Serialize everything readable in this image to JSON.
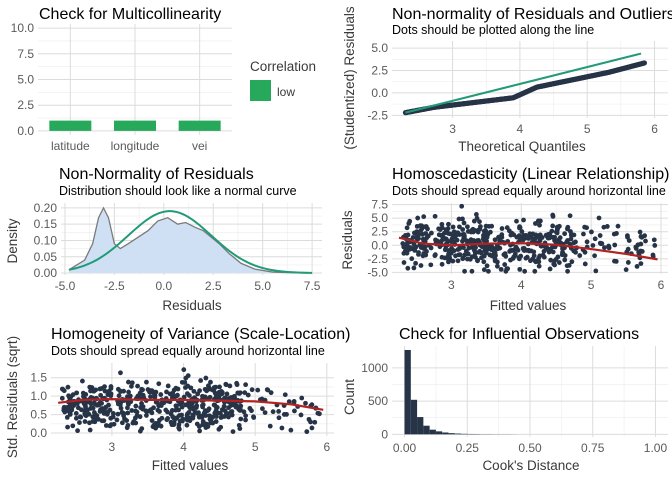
{
  "colors": {
    "point": "#273447",
    "fit_line": "#b22222",
    "normal_curve": "#219a78",
    "density_fill": "#cfe0f4",
    "density_line": "#7a7a7a",
    "bar_green": "#27a95c",
    "bar_navy": "#273447"
  },
  "chart_data": [
    {
      "id": "vif",
      "type": "bar",
      "title": "Check for Multicollinearity",
      "categories": [
        "latitude",
        "longitude",
        "vei"
      ],
      "values": [
        1.0,
        1.0,
        1.0
      ],
      "ylim": [
        0,
        10
      ],
      "yticks": [
        "0.0",
        "2.5",
        "5.0",
        "7.5",
        "10.0"
      ],
      "legend_title": "Correlation",
      "legend_label": "low"
    },
    {
      "id": "qq",
      "type": "scatter",
      "title": "Non-normality of Residuals and Outliers",
      "subtitle": "Dots should be plotted along the line",
      "xlabel": "Theoretical Quantiles",
      "ylabel": "(Studentized) Residuals",
      "xlim": [
        2.1,
        6.2
      ],
      "ylim": [
        -2.8,
        5.8
      ],
      "xticks": [
        "3",
        "4",
        "5",
        "6"
      ],
      "yticks": [
        "-2.5",
        "0.0",
        "2.5",
        "5.0"
      ],
      "reference_line": [
        [
          2.3,
          -2.2
        ],
        [
          5.8,
          4.4
        ]
      ]
    },
    {
      "id": "density",
      "type": "area",
      "title": "Non-Normality of Residuals",
      "subtitle": "Distribution should look like a normal curve",
      "xlabel": "Residuals",
      "ylabel": "Density",
      "xlim": [
        -5.2,
        8.0
      ],
      "ylim": [
        0,
        0.215
      ],
      "xticks": [
        "-5.0",
        "-2.5",
        "0.0",
        "2.5",
        "5.0",
        "7.5"
      ],
      "yticks": [
        "0.00",
        "0.05",
        "0.10",
        "0.15",
        "0.20"
      ],
      "density_x": [
        -4.8,
        -4.0,
        -3.6,
        -3.3,
        -3.05,
        -2.8,
        -2.5,
        -2.2,
        -1.8,
        -1.3,
        -0.8,
        -0.3,
        0.2,
        0.7,
        1.1,
        1.6,
        2.0,
        2.4,
        2.8,
        3.3,
        3.9,
        4.6,
        5.5,
        6.5,
        7.3
      ],
      "density_y": [
        0.01,
        0.04,
        0.09,
        0.17,
        0.2,
        0.17,
        0.09,
        0.075,
        0.09,
        0.11,
        0.13,
        0.16,
        0.17,
        0.15,
        0.155,
        0.14,
        0.13,
        0.11,
        0.09,
        0.06,
        0.03,
        0.012,
        0.003,
        0.001,
        0.0
      ],
      "normal_mean": 0.3,
      "normal_sd": 2.1
    },
    {
      "id": "homosced",
      "type": "scatter",
      "title": "Homoscedasticity (Linear Relationship)",
      "subtitle": "Dots should spread equally around horizontal line",
      "xlabel": "Fitted values",
      "ylabel": "Residuals",
      "xlim": [
        2.15,
        6.1
      ],
      "ylim": [
        -5.3,
        7.8
      ],
      "xticks": [
        "3",
        "4",
        "5",
        "6"
      ],
      "yticks": [
        "-5.0",
        "-2.5",
        "0.0",
        "2.5",
        "5.0",
        "7.5"
      ],
      "smooth": [
        [
          2.25,
          1.4
        ],
        [
          2.6,
          0.3
        ],
        [
          3.0,
          0.0
        ],
        [
          3.5,
          0.3
        ],
        [
          4.0,
          0.4
        ],
        [
          4.5,
          0.1
        ],
        [
          5.0,
          -0.7
        ],
        [
          5.5,
          -1.6
        ],
        [
          5.95,
          -2.6
        ]
      ]
    },
    {
      "id": "scale_location",
      "type": "scatter",
      "title": "Homogeneity of Variance (Scale-Location)",
      "subtitle": "Dots should spread equally around horizontal line",
      "xlabel": "Fitted values",
      "ylabel": "Std. Residuals (sqrt)",
      "xlim": [
        2.15,
        6.1
      ],
      "ylim": [
        -0.08,
        1.9
      ],
      "xticks": [
        "3",
        "4",
        "5",
        "6"
      ],
      "yticks": [
        "0.0",
        "0.5",
        "1.0",
        "1.5"
      ],
      "smooth": [
        [
          2.25,
          0.82
        ],
        [
          2.6,
          0.9
        ],
        [
          3.0,
          0.92
        ],
        [
          3.5,
          0.9
        ],
        [
          4.0,
          0.9
        ],
        [
          4.5,
          0.88
        ],
        [
          5.0,
          0.86
        ],
        [
          5.5,
          0.78
        ],
        [
          5.95,
          0.63
        ]
      ]
    },
    {
      "id": "influence",
      "type": "bar",
      "title": "Check for Influential Observations",
      "xlabel": "Cook's Distance",
      "ylabel": "Count",
      "xlim": [
        -0.05,
        1.05
      ],
      "ylim": [
        -40,
        1330
      ],
      "xticks": [
        "0.00",
        "0.25",
        "0.50",
        "0.75",
        "1.00"
      ],
      "yticks": [
        "0",
        "500",
        "1000"
      ],
      "bin_starts": [
        0.0,
        0.025,
        0.05,
        0.075,
        0.1,
        0.125,
        0.15,
        0.175,
        0.2,
        0.225,
        0.25,
        0.275,
        0.3,
        0.325,
        0.35,
        0.375,
        0.4,
        0.425
      ],
      "bin_width": 0.025,
      "counts": [
        1270,
        520,
        260,
        130,
        70,
        45,
        28,
        18,
        12,
        8,
        6,
        5,
        3,
        3,
        2,
        2,
        2,
        1
      ]
    }
  ]
}
